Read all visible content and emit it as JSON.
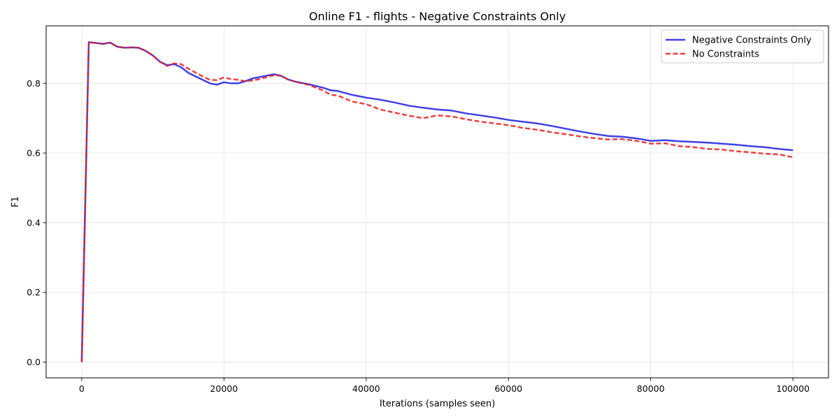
{
  "chart_data": {
    "type": "line",
    "title": "Online F1 - flights - Negative Constraints Only",
    "xlabel": "Iterations (samples seen)",
    "ylabel": "F1",
    "xlim": [
      -5000,
      105000
    ],
    "ylim": [
      -0.045,
      0.965
    ],
    "xticks": [
      0,
      20000,
      40000,
      60000,
      80000,
      100000
    ],
    "xtick_labels": [
      "0",
      "20000",
      "40000",
      "60000",
      "80000",
      "100000"
    ],
    "yticks": [
      0.0,
      0.2,
      0.4,
      0.6,
      0.8
    ],
    "ytick_labels": [
      "0.0",
      "0.2",
      "0.4",
      "0.6",
      "0.8"
    ],
    "grid": true,
    "legend_position": "top-right",
    "x": [
      0,
      1000,
      2000,
      3000,
      4000,
      5000,
      6000,
      7000,
      8000,
      9000,
      10000,
      11000,
      12000,
      13000,
      14000,
      15000,
      16000,
      17000,
      18000,
      19000,
      20000,
      21000,
      22000,
      23000,
      24000,
      25000,
      26000,
      27000,
      28000,
      29000,
      30000,
      32000,
      34000,
      35000,
      36000,
      38000,
      40000,
      42000,
      44000,
      46000,
      48000,
      50000,
      52000,
      54000,
      56000,
      58000,
      60000,
      62000,
      64000,
      66000,
      68000,
      70000,
      72000,
      74000,
      76000,
      78000,
      80000,
      82000,
      84000,
      86000,
      88000,
      90000,
      92000,
      94000,
      96000,
      98000,
      100000
    ],
    "series": [
      {
        "name": "Negative Constraints Only",
        "color": "#1f1fe0",
        "style": "solid",
        "values": [
          0.0,
          0.918,
          0.916,
          0.913,
          0.917,
          0.905,
          0.902,
          0.903,
          0.902,
          0.893,
          0.88,
          0.862,
          0.852,
          0.855,
          0.846,
          0.83,
          0.82,
          0.81,
          0.8,
          0.796,
          0.803,
          0.8,
          0.8,
          0.806,
          0.814,
          0.818,
          0.822,
          0.826,
          0.822,
          0.811,
          0.805,
          0.797,
          0.787,
          0.78,
          0.778,
          0.767,
          0.759,
          0.753,
          0.745,
          0.736,
          0.73,
          0.725,
          0.722,
          0.714,
          0.708,
          0.702,
          0.695,
          0.69,
          0.685,
          0.678,
          0.67,
          0.662,
          0.655,
          0.649,
          0.647,
          0.642,
          0.635,
          0.637,
          0.634,
          0.632,
          0.63,
          0.627,
          0.624,
          0.62,
          0.617,
          0.612,
          0.608
        ]
      },
      {
        "name": "No Constraints",
        "color": "#e81f1f",
        "style": "dashed",
        "values": [
          0.0,
          0.918,
          0.916,
          0.913,
          0.917,
          0.905,
          0.902,
          0.903,
          0.902,
          0.893,
          0.88,
          0.862,
          0.85,
          0.857,
          0.855,
          0.842,
          0.831,
          0.82,
          0.81,
          0.809,
          0.817,
          0.812,
          0.81,
          0.806,
          0.808,
          0.812,
          0.818,
          0.823,
          0.822,
          0.811,
          0.805,
          0.795,
          0.779,
          0.767,
          0.765,
          0.748,
          0.74,
          0.725,
          0.716,
          0.707,
          0.7,
          0.708,
          0.705,
          0.697,
          0.69,
          0.685,
          0.68,
          0.672,
          0.667,
          0.66,
          0.654,
          0.648,
          0.643,
          0.639,
          0.64,
          0.635,
          0.627,
          0.628,
          0.62,
          0.617,
          0.612,
          0.61,
          0.605,
          0.602,
          0.598,
          0.596,
          0.588
        ]
      }
    ]
  }
}
